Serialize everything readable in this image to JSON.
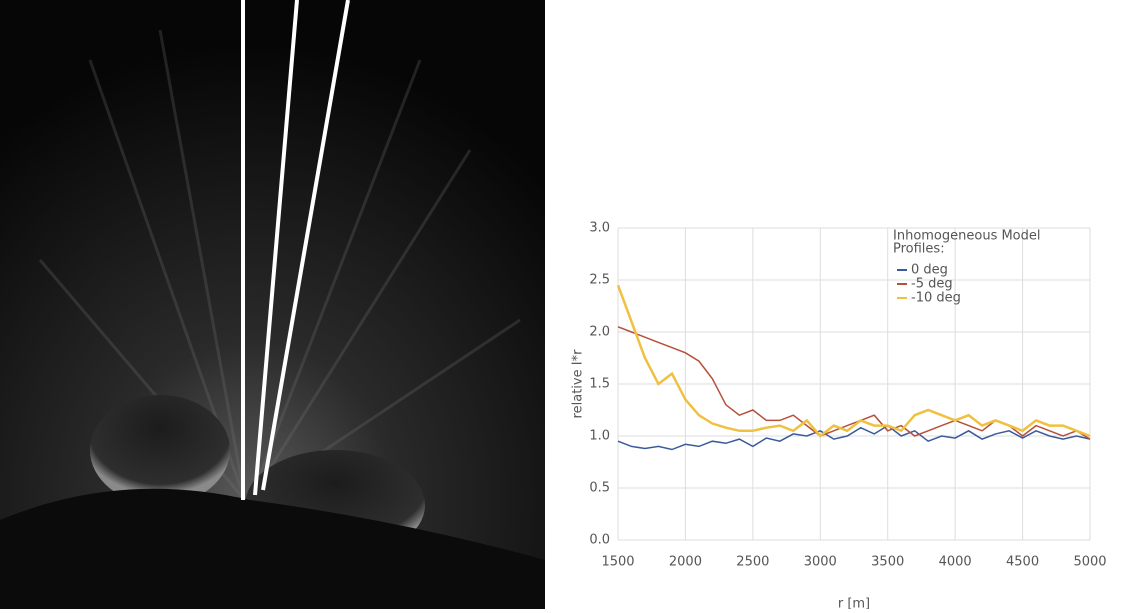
{
  "chart_data": {
    "type": "line",
    "xlabel": "r [m]",
    "ylabel": "relative I*r",
    "legend_title": [
      "Inhomogeneous Model",
      "Profiles:"
    ],
    "x": [
      1500,
      1600,
      1700,
      1800,
      1900,
      2000,
      2100,
      2200,
      2300,
      2400,
      2500,
      2600,
      2700,
      2800,
      2900,
      3000,
      3100,
      3200,
      3300,
      3400,
      3500,
      3600,
      3700,
      3800,
      3900,
      4000,
      4100,
      4200,
      4300,
      4400,
      4500,
      4600,
      4700,
      4800,
      4900,
      5000
    ],
    "series": [
      {
        "name": "0 deg",
        "color": "#3a5a9c",
        "values": [
          0.95,
          0.9,
          0.88,
          0.9,
          0.87,
          0.92,
          0.9,
          0.95,
          0.93,
          0.97,
          0.9,
          0.98,
          0.95,
          1.02,
          1.0,
          1.05,
          0.97,
          1.0,
          1.08,
          1.02,
          1.1,
          1.0,
          1.05,
          0.95,
          1.0,
          0.98,
          1.05,
          0.97,
          1.02,
          1.05,
          0.98,
          1.05,
          1.0,
          0.97,
          1.0,
          0.97
        ]
      },
      {
        "name": "-5 deg",
        "color": "#b5513a",
        "values": [
          2.05,
          2.0,
          1.95,
          1.9,
          1.85,
          1.8,
          1.72,
          1.55,
          1.3,
          1.2,
          1.25,
          1.15,
          1.15,
          1.2,
          1.1,
          1.0,
          1.05,
          1.1,
          1.15,
          1.2,
          1.05,
          1.1,
          1.0,
          1.05,
          1.1,
          1.15,
          1.1,
          1.05,
          1.15,
          1.1,
          1.0,
          1.1,
          1.05,
          1.0,
          1.05,
          0.97
        ]
      },
      {
        "name": "-10 deg",
        "color": "#f0c040",
        "values": [
          2.45,
          2.1,
          1.75,
          1.5,
          1.6,
          1.35,
          1.2,
          1.12,
          1.08,
          1.05,
          1.05,
          1.08,
          1.1,
          1.05,
          1.15,
          1.0,
          1.1,
          1.05,
          1.15,
          1.1,
          1.1,
          1.05,
          1.2,
          1.25,
          1.2,
          1.15,
          1.2,
          1.1,
          1.15,
          1.1,
          1.05,
          1.15,
          1.1,
          1.1,
          1.05,
          1.0
        ]
      }
    ],
    "xlim": [
      1500,
      5000
    ],
    "xticks": [
      1500,
      2000,
      2500,
      3000,
      3500,
      4000,
      4500,
      5000
    ],
    "ylim": [
      0,
      3
    ],
    "yticks": [
      {
        "value": 0,
        "label": "0.0"
      },
      {
        "value": 0.5,
        "label": "0.5"
      },
      {
        "value": 1,
        "label": "1.0"
      },
      {
        "value": 1.5,
        "label": "1.5"
      },
      {
        "value": 2,
        "label": "2.0"
      },
      {
        "value": 2.5,
        "label": "2.5"
      },
      {
        "value": 3,
        "label": "3.0"
      }
    ],
    "grid": true
  }
}
